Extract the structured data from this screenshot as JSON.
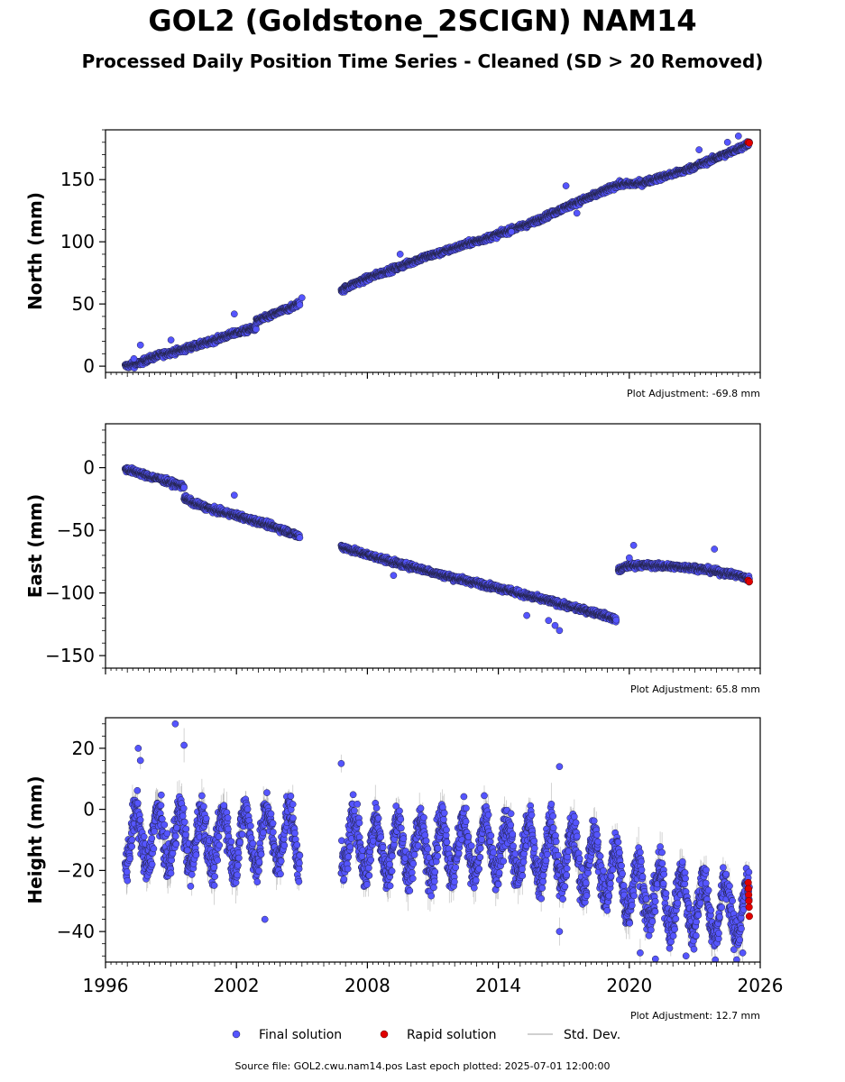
{
  "page": {
    "title": "GOL2 (Goldstone_2SCIGN) NAM14",
    "subtitle": "Processed Daily Position Time Series - Cleaned (SD > 20 Removed)",
    "footer": "Source file: GOL2.cwu.nam14.pos  Last epoch plotted: 2025-07-01 12:00:00"
  },
  "colors": {
    "final": "#5555ff",
    "rapid": "#e00000",
    "stddev": "#c0c0c0",
    "marker_edge": "#222244"
  },
  "chart_data": [
    {
      "type": "scatter",
      "ylabel": "North (mm)",
      "xlim": [
        1996,
        2026
      ],
      "ylim": [
        -5,
        190
      ],
      "yticks": [
        0,
        50,
        100,
        150
      ],
      "xticks": [
        1996,
        2002,
        2008,
        2014,
        2020,
        2026
      ],
      "show_xtick_labels": false,
      "adjustment": "Plot Adjustment: -69.8 mm",
      "series": [
        {
          "name": "Final solution",
          "role": "final",
          "segments": [
            {
              "x": [
                1996.9,
                1997.5,
                1998.0,
                1998.5,
                1999.0,
                1999.5,
                2000.0,
                2000.5,
                2001.0,
                2001.5,
                2002.0,
                2002.5,
                2002.9
              ],
              "y": [
                0,
                2,
                6,
                9,
                11,
                13,
                16,
                18,
                21,
                24,
                27,
                29,
                31
              ]
            },
            {
              "x": [
                2002.9,
                2003.5,
                2004.0,
                2004.5,
                2004.9
              ],
              "y": [
                36,
                40,
                44,
                47,
                51
              ]
            },
            {
              "x": [
                2006.8,
                2007.5,
                2008.5,
                2009.5,
                2010.5,
                2011.5,
                2012.5,
                2013.5,
                2014.5,
                2015.5,
                2016.5,
                2017.5,
                2018.5,
                2019.5,
                2020.5,
                2021.5,
                2022.5,
                2023.5,
                2024.5,
                2025.5
              ],
              "y": [
                61,
                67,
                74,
                80,
                87,
                92,
                98,
                103,
                109,
                115,
                123,
                131,
                138,
                146,
                147,
                152,
                157,
                164,
                171,
                179
              ]
            }
          ],
          "outliers": [
            [
              1997.3,
              6
            ],
            [
              1997.6,
              17
            ],
            [
              1999.0,
              21
            ],
            [
              2001.9,
              42
            ],
            [
              2005.0,
              55
            ],
            [
              2009.5,
              90
            ],
            [
              2014.6,
              108
            ],
            [
              2017.1,
              145
            ],
            [
              2017.6,
              123
            ],
            [
              2023.2,
              174
            ],
            [
              2024.5,
              180
            ],
            [
              2025.0,
              185
            ]
          ]
        },
        {
          "name": "Rapid solution",
          "role": "rapid",
          "x": [
            2025.45,
            2025.5
          ],
          "y": [
            180,
            179.5
          ]
        }
      ]
    },
    {
      "type": "scatter",
      "ylabel": "East (mm)",
      "xlim": [
        1996,
        2026
      ],
      "ylim": [
        -160,
        35
      ],
      "yticks": [
        -150,
        -100,
        -50,
        0
      ],
      "xticks": [
        1996,
        2002,
        2008,
        2014,
        2020,
        2026
      ],
      "show_xtick_labels": false,
      "adjustment": "Plot Adjustment: 65.8 mm",
      "series": [
        {
          "name": "Final solution",
          "role": "final",
          "segments": [
            {
              "x": [
                1996.9,
                1997.5,
                1998.0,
                1998.5,
                1999.0,
                1999.6
              ],
              "y": [
                -1,
                -4,
                -7,
                -9,
                -12,
                -15
              ]
            },
            {
              "x": [
                1999.6,
                2000.0,
                2000.5,
                2001.0,
                2001.5,
                2002.0,
                2002.5,
                2003.0,
                2003.5,
                2004.0,
                2004.5,
                2004.9
              ],
              "y": [
                -24,
                -28,
                -31,
                -34,
                -36,
                -38,
                -41,
                -43,
                -46,
                -49,
                -52,
                -55
              ]
            },
            {
              "x": [
                2006.8,
                2007.5,
                2008.5,
                2009.5,
                2010.5,
                2011.5,
                2012.5,
                2013.5,
                2014.5,
                2015.5,
                2016.5,
                2017.5,
                2018.5,
                2019.4
              ],
              "y": [
                -63,
                -67,
                -72,
                -77,
                -81,
                -86,
                -90,
                -94,
                -98,
                -103,
                -107,
                -112,
                -116,
                -121
              ]
            },
            {
              "x": [
                2019.5,
                2020.0,
                2021.0,
                2022.0,
                2023.0,
                2024.0,
                2025.0,
                2025.5
              ],
              "y": [
                -82,
                -78,
                -78,
                -79,
                -80,
                -83,
                -86,
                -89
              ]
            }
          ],
          "outliers": [
            [
              2001.9,
              -22
            ],
            [
              2009.2,
              -86
            ],
            [
              2015.3,
              -118
            ],
            [
              2016.3,
              -122
            ],
            [
              2016.8,
              -130
            ],
            [
              2016.6,
              -126
            ],
            [
              2020.2,
              -62
            ],
            [
              2020.0,
              -72
            ],
            [
              2023.9,
              -65
            ]
          ]
        },
        {
          "name": "Rapid solution",
          "role": "rapid",
          "x": [
            2025.45,
            2025.5
          ],
          "y": [
            -90,
            -91
          ]
        }
      ]
    },
    {
      "type": "scatter",
      "ylabel": "Height (mm)",
      "xlim": [
        1996,
        2026
      ],
      "ylim": [
        -50,
        30
      ],
      "yticks": [
        -40,
        -20,
        0,
        20
      ],
      "xticks": [
        1996,
        2002,
        2008,
        2014,
        2020,
        2026
      ],
      "show_xtick_labels": true,
      "adjustment": "Plot Adjustment: 12.7 mm",
      "series": [
        {
          "name": "Final solution",
          "role": "final",
          "segments": [
            {
              "x": [
                1996.9,
                1998.0,
                1999.0,
                2000.0,
                2001.0,
                2002.0,
                2003.0,
                2004.0,
                2004.9
              ],
              "y": [
                -10,
                -10,
                -9,
                -10,
                -10,
                -10,
                -9,
                -9,
                -9
              ]
            },
            {
              "x": [
                2006.8,
                2008.0,
                2010.0,
                2012.0,
                2014.0,
                2016.0,
                2017.0,
                2018.0,
                2019.0,
                2020.0,
                2021.0,
                2022.0,
                2023.0,
                2024.0,
                2025.0,
                2025.5
              ],
              "y": [
                -10,
                -12,
                -13,
                -12,
                -13,
                -14,
                -15,
                -17,
                -20,
                -25,
                -28,
                -30,
                -31,
                -33,
                -33,
                -34
              ]
            }
          ],
          "amplitude": 9,
          "outliers": [
            [
              1999.2,
              28
            ],
            [
              1999.6,
              21
            ],
            [
              1997.5,
              20
            ],
            [
              1997.6,
              16
            ],
            [
              2003.3,
              -36
            ],
            [
              2006.8,
              15
            ],
            [
              2016.8,
              14
            ],
            [
              2016.8,
              -40
            ],
            [
              2021.2,
              -49
            ],
            [
              2020.5,
              -47
            ],
            [
              2022.6,
              -48
            ],
            [
              2025.2,
              -47
            ]
          ]
        },
        {
          "name": "Rapid solution",
          "role": "rapid",
          "x": [
            2025.45,
            2025.46,
            2025.47,
            2025.48,
            2025.49,
            2025.5
          ],
          "y": [
            -24,
            -26,
            -28,
            -30,
            -32,
            -35
          ]
        }
      ]
    }
  ],
  "legend": {
    "position": "bottom-center",
    "items": [
      {
        "label": "Final solution",
        "role": "final"
      },
      {
        "label": "Rapid solution",
        "role": "rapid"
      },
      {
        "label": "Std. Dev.",
        "role": "stddev"
      }
    ]
  }
}
